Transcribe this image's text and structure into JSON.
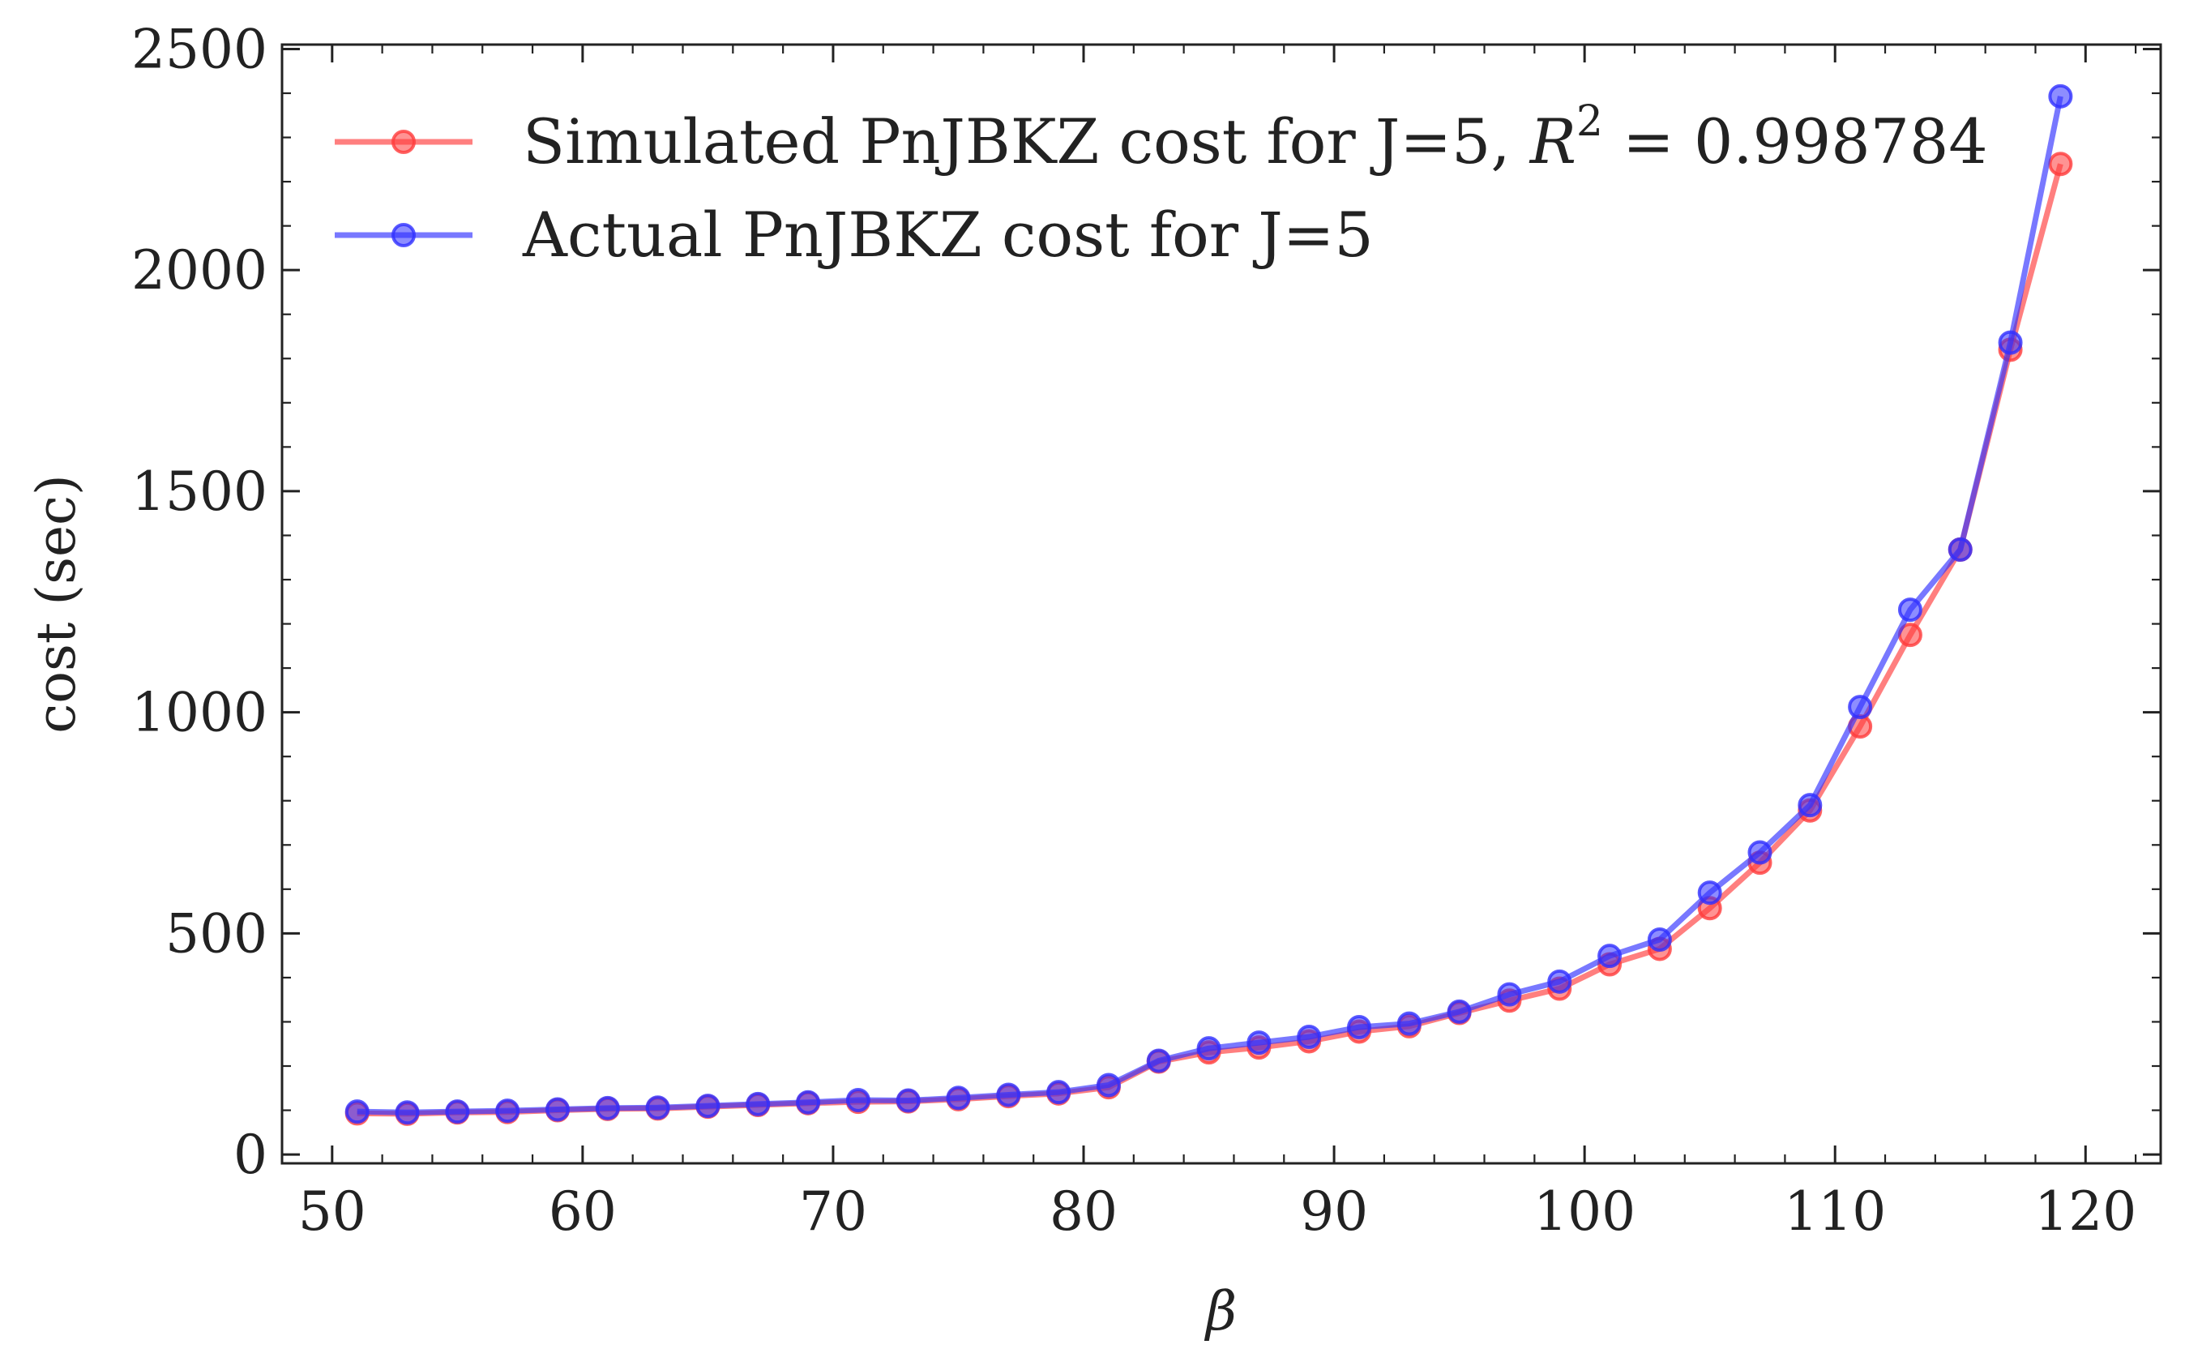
{
  "chart_data": {
    "type": "line",
    "title": "",
    "xlabel": "β",
    "ylabel": "cost (sec)",
    "xlim": [
      48,
      123
    ],
    "ylim": [
      -20,
      2510
    ],
    "xticks": [
      50,
      60,
      70,
      80,
      90,
      100,
      110,
      120
    ],
    "yticks": [
      0,
      500,
      1000,
      1500,
      2000,
      2500
    ],
    "grid": false,
    "legend_position": "top-left",
    "x": [
      51,
      53,
      55,
      57,
      59,
      61,
      63,
      65,
      67,
      69,
      71,
      73,
      75,
      77,
      79,
      81,
      83,
      85,
      87,
      89,
      91,
      93,
      95,
      97,
      99,
      101,
      103,
      105,
      107,
      109,
      111,
      113,
      115,
      117,
      119
    ],
    "series": [
      {
        "name": "Simulated PnJBKZ cost for J=5, R² = 0.998784",
        "legend_main": "Simulated PnJBKZ cost for J=5, ",
        "legend_r": "R",
        "legend_sup": "2",
        "legend_tail": " = 0.998784",
        "color": "#ff3b3b",
        "values": [
          93,
          92,
          95,
          96,
          100,
          103,
          104,
          108,
          112,
          116,
          119,
          120,
          125,
          132,
          138,
          152,
          210,
          231,
          242,
          256,
          278,
          290,
          320,
          348,
          375,
          430,
          465,
          557,
          660,
          778,
          968,
          1175,
          1368,
          1820,
          2240
        ]
      },
      {
        "name": "Actual PnJBKZ cost for J=5",
        "legend_main": "Actual PnJBKZ cost for J=5",
        "color": "#2f2fff",
        "values": [
          97,
          95,
          97,
          99,
          102,
          105,
          106,
          110,
          114,
          118,
          123,
          122,
          128,
          135,
          141,
          157,
          212,
          240,
          253,
          266,
          288,
          296,
          323,
          362,
          391,
          449,
          486,
          592,
          683,
          790,
          1012,
          1232,
          1368,
          1836,
          2393
        ]
      }
    ]
  }
}
